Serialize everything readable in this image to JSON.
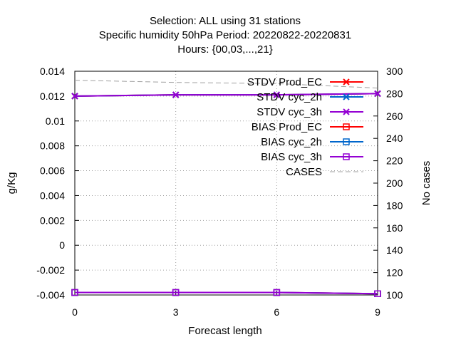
{
  "chart_data": {
    "type": "line",
    "title_lines": [
      "Selection: ALL using    31 stations",
      "Specific humidity 50hPa   Period: 20220822-20220831",
      "Hours: {00,03,...,21}"
    ],
    "xlabel": "Forecast length",
    "ylabel": "g/Kg",
    "y2label": "No cases",
    "x": [
      0,
      3,
      6,
      9
    ],
    "xlim": [
      0,
      9
    ],
    "ylim": [
      -0.004,
      0.014
    ],
    "y2lim": [
      100,
      300
    ],
    "xticks": [
      "0",
      "3",
      "6",
      "9"
    ],
    "yticks": [
      "-0.004",
      "-0.002",
      "0",
      "0.002",
      "0.004",
      "0.006",
      "0.008",
      "0.01",
      "0.012",
      "0.014"
    ],
    "y2ticks": [
      "100",
      "120",
      "140",
      "160",
      "180",
      "200",
      "220",
      "240",
      "260",
      "280",
      "300"
    ],
    "grid": true,
    "legend_position": "top-right",
    "series": [
      {
        "name": "STDV Prod_EC",
        "axis": "y",
        "color": "#ff0000",
        "marker": "x",
        "values": [
          0.012,
          0.0121,
          0.0121,
          0.0122
        ]
      },
      {
        "name": "STDV cyc_2h",
        "axis": "y",
        "color": "#0066cc",
        "marker": "x",
        "values": [
          0.012,
          0.0121,
          0.0121,
          0.0122
        ]
      },
      {
        "name": "STDV cyc_3h",
        "axis": "y",
        "color": "#9400d3",
        "marker": "x",
        "values": [
          0.012,
          0.0121,
          0.0121,
          0.0122
        ]
      },
      {
        "name": "BIAS Prod_EC",
        "axis": "y",
        "color": "#ff0000",
        "marker": "square",
        "values": [
          -0.0038,
          -0.0038,
          -0.0038,
          -0.0039
        ]
      },
      {
        "name": "BIAS cyc_2h",
        "axis": "y",
        "color": "#0066cc",
        "marker": "square",
        "values": [
          -0.0038,
          -0.0038,
          -0.0038,
          -0.0039
        ]
      },
      {
        "name": "BIAS cyc_3h",
        "axis": "y",
        "color": "#9400d3",
        "marker": "square",
        "values": [
          -0.0038,
          -0.0038,
          -0.0038,
          -0.0039
        ]
      },
      {
        "name": "CASES",
        "axis": "y2",
        "color": "#a0a0a0",
        "marker": "none",
        "dashed": true,
        "values": [
          292,
          290,
          289,
          285
        ]
      }
    ]
  }
}
